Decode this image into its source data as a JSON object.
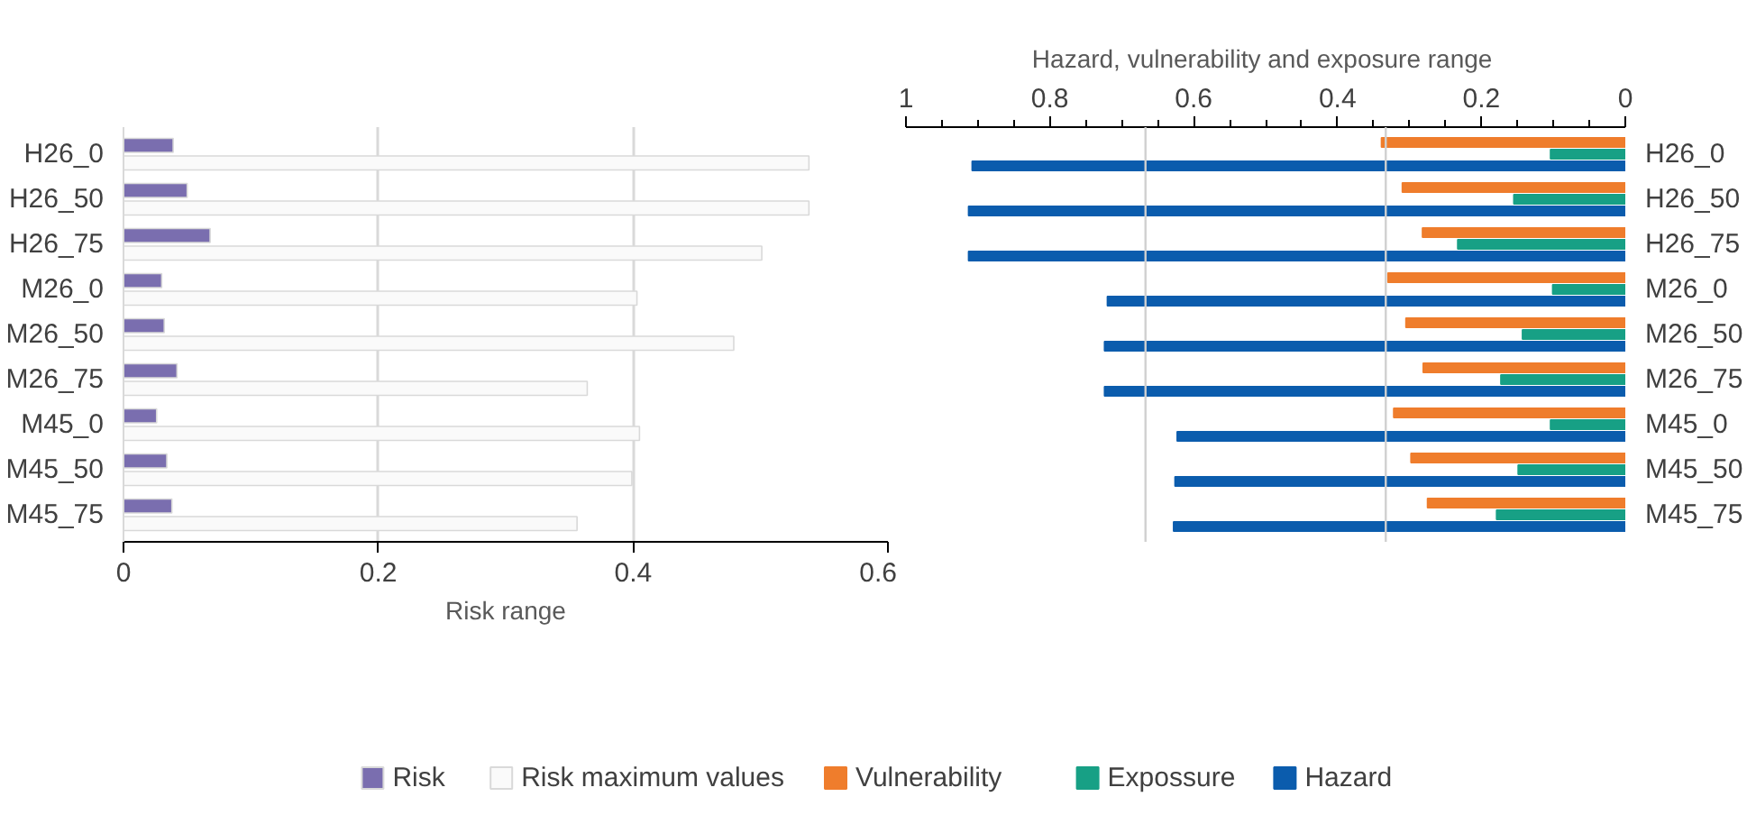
{
  "chart_data": [
    {
      "type": "bar",
      "orientation": "horizontal",
      "xlabel": "Risk range",
      "categories": [
        "H26_0",
        "H26_50",
        "H26_75",
        "M26_0",
        "M26_50",
        "M26_75",
        "M45_0",
        "M45_50",
        "M45_75"
      ],
      "series": [
        {
          "name": "Risk",
          "color": "#7a6eaf",
          "values": [
            0.039,
            0.05,
            0.068,
            0.03,
            0.032,
            0.042,
            0.026,
            0.034,
            0.038
          ]
        },
        {
          "name": "Risk maximum values",
          "color": "#fafafa",
          "values": [
            0.538,
            0.538,
            0.501,
            0.403,
            0.479,
            0.364,
            0.405,
            0.399,
            0.356
          ]
        }
      ],
      "xlim": [
        0,
        0.6
      ],
      "xticks": [
        0,
        0.2,
        0.4,
        0.6
      ],
      "grid": "x",
      "legend": "bottom"
    },
    {
      "type": "bar",
      "orientation": "horizontal",
      "xlabel": "Hazard, vulnerability  and exposure range",
      "categories": [
        "H26_0",
        "H26_50",
        "H26_75",
        "M26_0",
        "M26_50",
        "M26_75",
        "M45_0",
        "M45_50",
        "M45_75"
      ],
      "series": [
        {
          "name": "Vulnerability",
          "color": "#ef7d2c",
          "values": [
            0.339,
            0.31,
            0.282,
            0.33,
            0.305,
            0.281,
            0.322,
            0.298,
            0.275
          ]
        },
        {
          "name": "Expossure",
          "color": "#17a085",
          "values": [
            0.104,
            0.155,
            0.233,
            0.101,
            0.143,
            0.173,
            0.104,
            0.149,
            0.179
          ]
        },
        {
          "name": "Hazard",
          "color": "#0b5cad",
          "values": [
            0.908,
            0.913,
            0.913,
            0.72,
            0.724,
            0.724,
            0.623,
            0.626,
            0.628
          ]
        }
      ],
      "xlim": [
        1,
        0
      ],
      "xticks": [
        1,
        {
          "value": 0.95,
          "label": null
        },
        {
          "value": 0.9,
          "label": null
        },
        {
          "value": 0.85,
          "label": null
        },
        0.8,
        {
          "value": 0.75,
          "label": null
        },
        {
          "value": 0.7,
          "label": null
        },
        {
          "value": 0.65,
          "label": null
        },
        0.6,
        {
          "value": 0.55,
          "label": null
        },
        {
          "value": 0.5,
          "label": null
        },
        {
          "value": 0.45,
          "label": null
        },
        0.4,
        {
          "value": 0.35,
          "label": null
        },
        {
          "value": 0.3,
          "label": null
        },
        {
          "value": 0.25,
          "label": null
        },
        0.2,
        {
          "value": 0.15,
          "label": null
        },
        {
          "value": 0.1,
          "label": null
        },
        {
          "value": 0.05,
          "label": null
        },
        0
      ],
      "ref_lines": [
        {
          "axis": "x",
          "value": 0.667,
          "label": null,
          "color": "#d0d0d0"
        },
        {
          "axis": "x",
          "value": 0.333,
          "label": null,
          "color": "#d0d0d0"
        }
      ],
      "legend": "bottom"
    }
  ]
}
